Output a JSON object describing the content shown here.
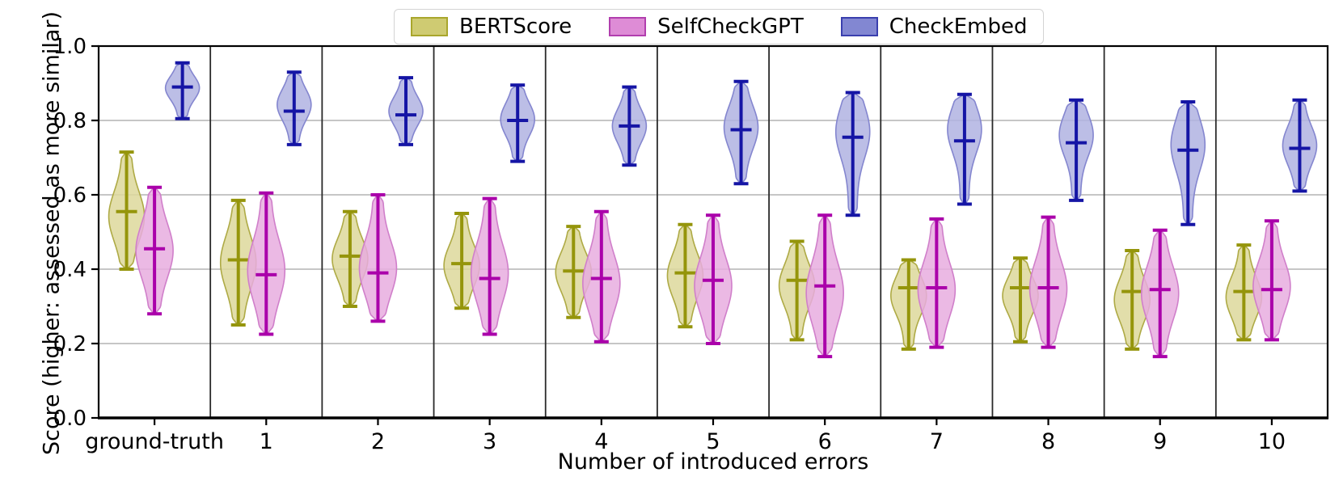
{
  "chart_data": {
    "type": "violin",
    "title": "",
    "xlabel": "Number of introduced errors",
    "ylabel": "Score (higher: assessed as more similar)",
    "categories": [
      "ground-truth",
      "1",
      "2",
      "3",
      "4",
      "5",
      "6",
      "7",
      "8",
      "9",
      "10"
    ],
    "ylim": [
      0.0,
      1.0
    ],
    "yticks": [
      0.0,
      0.2,
      0.4,
      0.6,
      0.8,
      1.0
    ],
    "ytick_labels": [
      "0.0",
      "0.2",
      "0.4",
      "0.6",
      "0.8",
      "1.0"
    ],
    "grid": "horizontal-gridlines-plus-vertical-group-separators",
    "legend_position": "top-center",
    "series": [
      {
        "name": "BERTScore",
        "line_color": "#95950b",
        "violin_fill": "#ddd89b",
        "violin_edge": "#aeaa45",
        "swatch_fill": "#cfcb72",
        "swatch_edge": "#a9a62c",
        "half_width": 22,
        "stats": [
          {
            "min": 0.4,
            "mean": 0.555,
            "max": 0.715,
            "peak": 0.45
          },
          {
            "min": 0.25,
            "mean": 0.425,
            "max": 0.585,
            "peak": 0.5
          },
          {
            "min": 0.3,
            "mean": 0.435,
            "max": 0.555,
            "peak": 0.5
          },
          {
            "min": 0.295,
            "mean": 0.415,
            "max": 0.55,
            "peak": 0.45
          },
          {
            "min": 0.27,
            "mean": 0.395,
            "max": 0.515,
            "peak": 0.5
          },
          {
            "min": 0.245,
            "mean": 0.39,
            "max": 0.52,
            "peak": 0.5
          },
          {
            "min": 0.21,
            "mean": 0.37,
            "max": 0.475,
            "peak": 0.55
          },
          {
            "min": 0.185,
            "mean": 0.35,
            "max": 0.425,
            "peak": 0.6
          },
          {
            "min": 0.205,
            "mean": 0.35,
            "max": 0.43,
            "peak": 0.55
          },
          {
            "min": 0.185,
            "mean": 0.34,
            "max": 0.45,
            "peak": 0.5
          },
          {
            "min": 0.21,
            "mean": 0.34,
            "max": 0.465,
            "peak": 0.45
          }
        ]
      },
      {
        "name": "SelfCheckGPT",
        "line_color": "#aa00aa",
        "violin_fill": "#e8addf",
        "violin_edge": "#d07fca",
        "swatch_fill": "#de8cd6",
        "swatch_edge": "#b13eae",
        "half_width": 23,
        "stats": [
          {
            "min": 0.28,
            "mean": 0.455,
            "max": 0.62,
            "peak": 0.5
          },
          {
            "min": 0.225,
            "mean": 0.385,
            "max": 0.605,
            "peak": 0.45
          },
          {
            "min": 0.26,
            "mean": 0.39,
            "max": 0.6,
            "peak": 0.42
          },
          {
            "min": 0.225,
            "mean": 0.375,
            "max": 0.59,
            "peak": 0.45
          },
          {
            "min": 0.205,
            "mean": 0.375,
            "max": 0.555,
            "peak": 0.45
          },
          {
            "min": 0.2,
            "mean": 0.37,
            "max": 0.545,
            "peak": 0.45
          },
          {
            "min": 0.165,
            "mean": 0.355,
            "max": 0.545,
            "peak": 0.45
          },
          {
            "min": 0.19,
            "mean": 0.35,
            "max": 0.535,
            "peak": 0.45
          },
          {
            "min": 0.19,
            "mean": 0.35,
            "max": 0.54,
            "peak": 0.45
          },
          {
            "min": 0.165,
            "mean": 0.345,
            "max": 0.505,
            "peak": 0.5
          },
          {
            "min": 0.21,
            "mean": 0.345,
            "max": 0.53,
            "peak": 0.45
          }
        ]
      },
      {
        "name": "CheckEmbed",
        "line_color": "#1515a5",
        "violin_fill": "#b0b3e2",
        "violin_edge": "#8486cf",
        "swatch_fill": "#8287d2",
        "swatch_edge": "#3a3fae",
        "half_width": 21,
        "stats": [
          {
            "min": 0.805,
            "mean": 0.89,
            "max": 0.955,
            "peak": 0.55
          },
          {
            "min": 0.735,
            "mean": 0.825,
            "max": 0.93,
            "peak": 0.55
          },
          {
            "min": 0.735,
            "mean": 0.815,
            "max": 0.915,
            "peak": 0.5
          },
          {
            "min": 0.69,
            "mean": 0.8,
            "max": 0.895,
            "peak": 0.55
          },
          {
            "min": 0.68,
            "mean": 0.785,
            "max": 0.89,
            "peak": 0.5
          },
          {
            "min": 0.63,
            "mean": 0.775,
            "max": 0.905,
            "peak": 0.55
          },
          {
            "min": 0.545,
            "mean": 0.755,
            "max": 0.875,
            "peak": 0.68
          },
          {
            "min": 0.575,
            "mean": 0.745,
            "max": 0.87,
            "peak": 0.68
          },
          {
            "min": 0.585,
            "mean": 0.74,
            "max": 0.855,
            "peak": 0.65
          },
          {
            "min": 0.52,
            "mean": 0.72,
            "max": 0.85,
            "peak": 0.65
          },
          {
            "min": 0.61,
            "mean": 0.725,
            "max": 0.855,
            "peak": 0.5
          }
        ]
      }
    ],
    "colors": {
      "gridline": "#b3b3b3",
      "separator": "#2a2a2a",
      "spine": "#000000",
      "text": "#000000",
      "background": "#ffffff"
    }
  }
}
